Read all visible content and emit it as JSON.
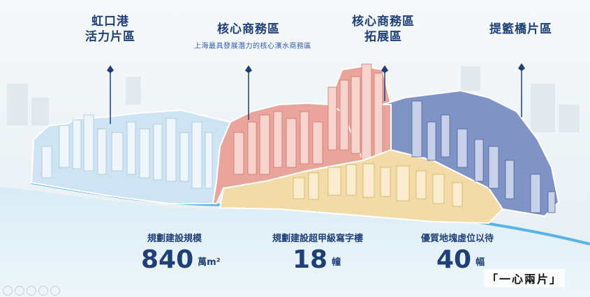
{
  "districts": [
    {
      "name_line1": "虹口港",
      "name_line2": "活力片區"
    },
    {
      "name_line1": "核心商務區",
      "name_line2": ""
    },
    {
      "name_line1": "核心商務區",
      "name_line2": "拓展區"
    },
    {
      "name_line1": "提籃橋片區",
      "name_line2": ""
    }
  ],
  "subtitle": "上海最具發展潛力的核心濱水商務區",
  "stats": [
    {
      "label": "規劃建設規模",
      "value": "840",
      "unit": "萬m²"
    },
    {
      "label": "規劃建設超甲級寫字樓",
      "value": "18",
      "unit": "幢"
    },
    {
      "label": "優質地塊虛位以待",
      "value": "40",
      "unit": "幅"
    }
  ],
  "caption": "「一心兩片」",
  "colors": {
    "text": "#1f3f78",
    "zone_blue_light": "#cfe4f2",
    "zone_red": "#e9a59c",
    "zone_yellow": "#f2dba6",
    "zone_navy": "#7f94c4",
    "river": "#56b4e6"
  }
}
